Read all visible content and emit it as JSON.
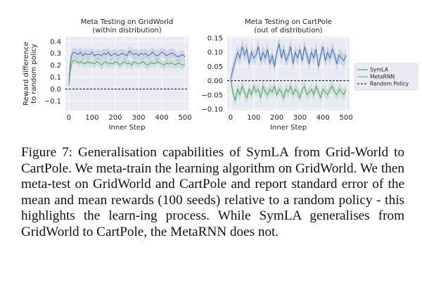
{
  "chart_data": [
    {
      "type": "line",
      "title": "Meta Testing on GridWorld",
      "subtitle": "(within distribution)",
      "xlabel": "Inner Step",
      "ylabel": [
        "Reward difference",
        "to random policy"
      ],
      "xlim": [
        -15,
        515
      ],
      "ylim": [
        -0.18,
        0.44
      ],
      "xticks": [
        0,
        100,
        200,
        300,
        400,
        500
      ],
      "yticks": [
        -0.1,
        0.0,
        0.1,
        0.2,
        0.3,
        0.4
      ],
      "ytick_labels": [
        "−0.1",
        "0.0",
        "0.1",
        "0.2",
        "0.3",
        "0.4"
      ],
      "grid": true,
      "legend": "none",
      "series": [
        {
          "name": "SymLA",
          "color": "#4c72b0",
          "x": [
            0,
            5,
            10,
            15,
            20,
            30,
            40,
            50,
            60,
            70,
            80,
            90,
            100,
            110,
            120,
            130,
            140,
            150,
            160,
            170,
            180,
            190,
            200,
            210,
            220,
            230,
            240,
            250,
            260,
            270,
            280,
            290,
            300,
            310,
            320,
            330,
            340,
            350,
            360,
            370,
            380,
            390,
            400,
            410,
            420,
            430,
            440,
            450,
            460,
            470,
            480,
            490,
            500
          ],
          "values": [
            0.06,
            0.2,
            0.27,
            0.3,
            0.31,
            0.3,
            0.29,
            0.31,
            0.28,
            0.3,
            0.29,
            0.29,
            0.31,
            0.28,
            0.29,
            0.29,
            0.28,
            0.3,
            0.29,
            0.31,
            0.28,
            0.29,
            0.3,
            0.28,
            0.29,
            0.3,
            0.29,
            0.28,
            0.32,
            0.3,
            0.29,
            0.3,
            0.28,
            0.3,
            0.29,
            0.3,
            0.28,
            0.29,
            0.31,
            0.29,
            0.28,
            0.29,
            0.31,
            0.3,
            0.28,
            0.29,
            0.3,
            0.3,
            0.28,
            0.27,
            0.28,
            0.29,
            0.27
          ],
          "band": 0.04
        },
        {
          "name": "MetaRNN",
          "color": "#55a868",
          "x": [
            0,
            5,
            10,
            15,
            20,
            30,
            40,
            50,
            60,
            70,
            80,
            90,
            100,
            110,
            120,
            130,
            140,
            150,
            160,
            170,
            180,
            190,
            200,
            210,
            220,
            230,
            240,
            250,
            260,
            270,
            280,
            290,
            300,
            310,
            320,
            330,
            340,
            350,
            360,
            370,
            380,
            390,
            400,
            410,
            420,
            430,
            440,
            450,
            460,
            470,
            480,
            490,
            500
          ],
          "values": [
            0.03,
            0.14,
            0.2,
            0.23,
            0.24,
            0.24,
            0.22,
            0.23,
            0.22,
            0.21,
            0.23,
            0.22,
            0.22,
            0.21,
            0.23,
            0.22,
            0.2,
            0.22,
            0.23,
            0.21,
            0.22,
            0.21,
            0.23,
            0.22,
            0.2,
            0.22,
            0.23,
            0.21,
            0.22,
            0.2,
            0.23,
            0.22,
            0.21,
            0.22,
            0.23,
            0.21,
            0.2,
            0.22,
            0.22,
            0.21,
            0.23,
            0.22,
            0.21,
            0.2,
            0.22,
            0.21,
            0.22,
            0.21,
            0.2,
            0.22,
            0.21,
            0.2,
            0.21
          ],
          "band": 0.035
        },
        {
          "name": "Random Policy",
          "color": "#000000",
          "style": "dashed",
          "x": [
            -15,
            515
          ],
          "values": [
            0.0,
            0.0
          ]
        }
      ]
    },
    {
      "type": "line",
      "title": "Meta Testing on CartPole",
      "subtitle": "(out of distribution)",
      "xlabel": "Inner Step",
      "ylabel": "",
      "xlim": [
        -15,
        515
      ],
      "ylim": [
        -0.105,
        0.155
      ],
      "xticks": [
        0,
        100,
        200,
        300,
        400,
        500
      ],
      "yticks": [
        -0.1,
        -0.05,
        0.0,
        0.05,
        0.1,
        0.15
      ],
      "ytick_labels": [
        "−0.10",
        "−0.05",
        "0.00",
        "0.05",
        "0.10",
        "0.15"
      ],
      "grid": true,
      "legend": "right",
      "series": [
        {
          "name": "SymLA",
          "color": "#4c72b0",
          "x": [
            0,
            10,
            20,
            30,
            40,
            50,
            60,
            70,
            80,
            90,
            100,
            110,
            120,
            130,
            140,
            150,
            160,
            170,
            180,
            190,
            200,
            210,
            220,
            230,
            240,
            250,
            260,
            270,
            280,
            290,
            300,
            310,
            320,
            330,
            340,
            350,
            360,
            370,
            380,
            390,
            400,
            410,
            420,
            430,
            440,
            450,
            460,
            470,
            480,
            490,
            500
          ],
          "values": [
            0.005,
            0.04,
            0.07,
            0.1,
            0.08,
            0.12,
            0.09,
            0.11,
            0.06,
            0.1,
            0.08,
            0.09,
            0.12,
            0.07,
            0.1,
            0.08,
            0.11,
            0.06,
            0.09,
            0.05,
            0.1,
            0.13,
            0.08,
            0.11,
            0.07,
            0.09,
            0.12,
            0.06,
            0.1,
            0.08,
            0.11,
            0.07,
            0.12,
            0.09,
            0.06,
            0.1,
            0.08,
            0.11,
            0.05,
            0.09,
            0.12,
            0.07,
            0.1,
            0.08,
            0.11,
            0.09,
            0.06,
            0.09,
            0.08,
            0.07,
            0.09
          ],
          "band": 0.025
        },
        {
          "name": "MetaRNN",
          "color": "#55a868",
          "x": [
            0,
            10,
            20,
            30,
            40,
            50,
            60,
            70,
            80,
            90,
            100,
            110,
            120,
            130,
            140,
            150,
            160,
            170,
            180,
            190,
            200,
            210,
            220,
            230,
            240,
            250,
            260,
            270,
            280,
            290,
            300,
            310,
            320,
            330,
            340,
            350,
            360,
            370,
            380,
            390,
            400,
            410,
            420,
            430,
            440,
            450,
            460,
            470,
            480,
            490,
            500
          ],
          "values": [
            0.0,
            -0.04,
            -0.07,
            -0.03,
            -0.05,
            -0.02,
            -0.04,
            -0.06,
            -0.03,
            -0.05,
            -0.02,
            -0.04,
            -0.03,
            -0.06,
            -0.02,
            -0.04,
            -0.05,
            -0.03,
            -0.04,
            -0.02,
            -0.05,
            -0.03,
            -0.04,
            -0.06,
            -0.03,
            -0.04,
            -0.02,
            -0.05,
            -0.03,
            -0.04,
            -0.06,
            -0.03,
            -0.02,
            -0.05,
            -0.04,
            -0.03,
            -0.05,
            -0.02,
            -0.04,
            -0.06,
            -0.03,
            -0.04,
            -0.05,
            -0.03,
            -0.02,
            -0.04,
            -0.05,
            -0.03,
            -0.04,
            -0.05,
            -0.03
          ],
          "band": 0.02
        },
        {
          "name": "Random Policy",
          "color": "#000000",
          "style": "dashed",
          "x": [
            -15,
            515
          ],
          "values": [
            0.0,
            0.0
          ]
        }
      ]
    }
  ],
  "caption": {
    "label": "Figure 7:",
    "text": "Generalisation capabilities of SymLA from Grid-World to CartPole. We meta-train the learning algorithm on GridWorld. We then meta-test on GridWorld and CartPole and report standard error of the mean and mean rewards (100 seeds) relative to a random policy - this highlights the learn-ing process. While SymLA generalises from GridWorld to CartPole, the MetaRNN does not."
  }
}
